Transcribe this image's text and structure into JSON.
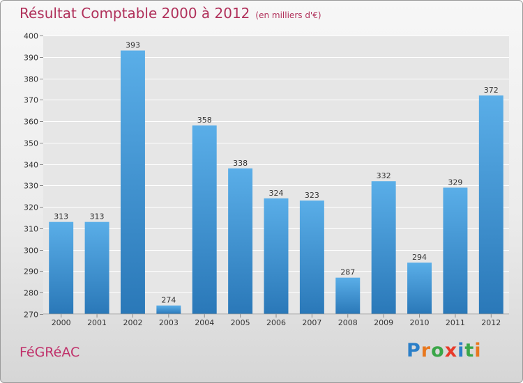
{
  "header": {
    "title": "Résultat Comptable 2000 à 2012",
    "unit": "(en milliers d'€)"
  },
  "footer": {
    "commune": "FéGRéAC",
    "logo_text": "Proxiti"
  },
  "colors": {
    "title": "#b0305a",
    "bar_top": "#5aaee8",
    "bar_bottom": "#2a78b8"
  },
  "chart_data": {
    "type": "bar",
    "title": "Résultat Comptable 2000 à 2012",
    "subtitle": "(en milliers d'€)",
    "xlabel": "",
    "ylabel": "",
    "categories": [
      "2000",
      "2001",
      "2002",
      "2003",
      "2004",
      "2005",
      "2006",
      "2007",
      "2008",
      "2009",
      "2010",
      "2011",
      "2012"
    ],
    "values": [
      313,
      313,
      393,
      274,
      358,
      338,
      324,
      323,
      287,
      332,
      294,
      329,
      372
    ],
    "ylim": [
      270,
      400
    ],
    "yticks": [
      270,
      280,
      290,
      300,
      310,
      320,
      330,
      340,
      350,
      360,
      370,
      380,
      390,
      400
    ],
    "grid": true,
    "legend": "none"
  }
}
